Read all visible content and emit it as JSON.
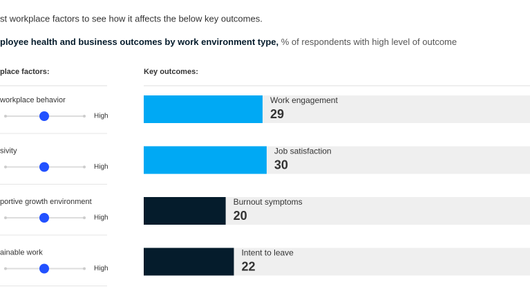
{
  "header": {
    "instruction": "st workplace factors to see how it affects the below key outcomes.",
    "title": "ployee health and business outcomes by work environment type,",
    "subtitle": "% of respondents with high level of outcome"
  },
  "factors": {
    "heading": "place factors:",
    "items": [
      {
        "label": "workplace behavior",
        "high": "High"
      },
      {
        "label": "sivity",
        "high": "High"
      },
      {
        "label": "portive growth environment",
        "high": "High"
      },
      {
        "label": "ainable work",
        "high": "High"
      }
    ]
  },
  "outcomes": {
    "heading": "Key outcomes:",
    "items": [
      {
        "label": "Work engagement",
        "value": 29,
        "color": "#00a9f4"
      },
      {
        "label": "Job satisfaction",
        "value": 30,
        "color": "#00a9f4"
      },
      {
        "label": "Burnout symptoms",
        "value": 20,
        "color": "#051c2c"
      },
      {
        "label": "Intent to leave",
        "value": 22,
        "color": "#051c2c"
      }
    ]
  }
}
